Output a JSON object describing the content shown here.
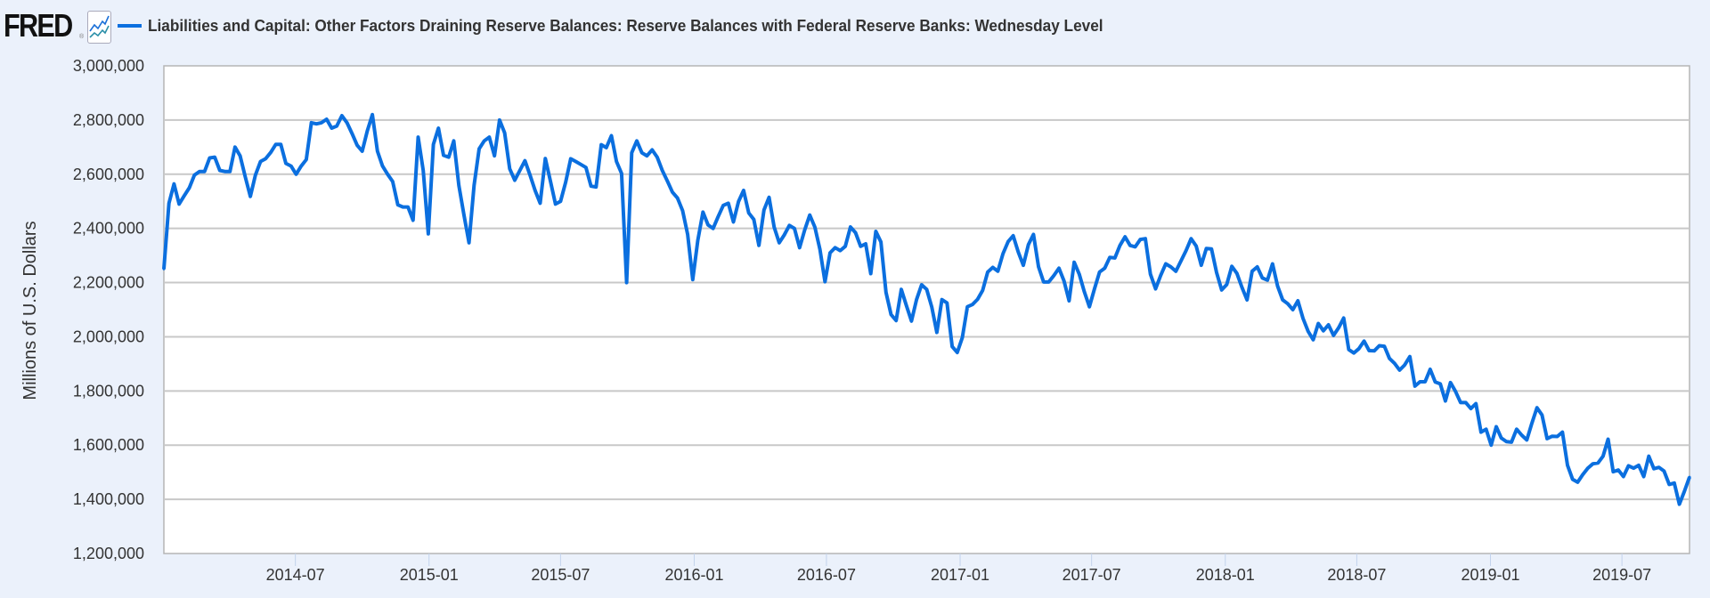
{
  "header": {
    "logo": "FRED",
    "logo_icon": "line-chart-icon",
    "legend_label": "Liabilities and Capital: Other Factors Draining Reserve Balances: Reserve Balances with Federal Reserve Banks: Wednesday Level"
  },
  "chart_data": {
    "type": "line",
    "title": "",
    "xlabel": "",
    "ylabel": "Millions of U.S. Dollars",
    "ylim": [
      1200000,
      3000000
    ],
    "xlim": [
      "2014-01-01",
      "2019-10-02"
    ],
    "grid": true,
    "legend_position": "top-left",
    "y_ticks": [
      "1,200,000",
      "1,400,000",
      "1,600,000",
      "1,800,000",
      "2,000,000",
      "2,200,000",
      "2,400,000",
      "2,600,000",
      "2,800,000",
      "3,000,000"
    ],
    "y_tick_values": [
      1200000,
      1400000,
      1600000,
      1800000,
      2000000,
      2200000,
      2400000,
      2600000,
      2800000,
      3000000
    ],
    "x_ticks": [
      "2014-07",
      "2015-01",
      "2015-07",
      "2016-01",
      "2016-07",
      "2017-01",
      "2017-07",
      "2018-01",
      "2018-07",
      "2019-01",
      "2019-07"
    ],
    "series": [
      {
        "name": "Liabilities and Capital: Other Factors Draining Reserve Balances: Reserve Balances with Federal Reserve Banks: Wednesday Level",
        "color": "#0b6fdf",
        "x_start": "2014-01-01",
        "frequency": "weekly (Wednesday)",
        "values": [
          2250000,
          2493000,
          2564000,
          2490000,
          2520000,
          2550000,
          2597000,
          2610000,
          2610000,
          2660000,
          2663000,
          2614000,
          2610000,
          2610000,
          2700000,
          2668000,
          2590000,
          2518000,
          2597000,
          2647000,
          2657000,
          2680000,
          2710000,
          2710000,
          2640000,
          2630000,
          2600000,
          2630000,
          2654000,
          2790000,
          2786000,
          2790000,
          2803000,
          2770000,
          2778000,
          2816000,
          2790000,
          2750000,
          2707000,
          2685000,
          2760000,
          2820000,
          2685000,
          2630000,
          2600000,
          2573000,
          2487000,
          2479000,
          2479000,
          2430000,
          2737000,
          2614000,
          2380000,
          2710000,
          2770000,
          2670000,
          2663000,
          2723000,
          2559000,
          2450000,
          2347000,
          2559000,
          2694000,
          2723000,
          2737000,
          2668000,
          2800000,
          2753000,
          2620000,
          2578000,
          2614000,
          2650000,
          2597000,
          2540000,
          2493000,
          2658000,
          2575000,
          2490000,
          2500000,
          2570000,
          2657000,
          2647000,
          2636000,
          2625000,
          2556000,
          2553000,
          2709000,
          2698000,
          2742000,
          2647000,
          2603000,
          2200000,
          2679000,
          2723000,
          2679000,
          2668000,
          2690000,
          2663000,
          2614000,
          2575000,
          2534000,
          2512000,
          2466000,
          2378000,
          2211000,
          2356000,
          2460000,
          2413000,
          2400000,
          2444000,
          2485000,
          2493000,
          2424000,
          2499000,
          2540000,
          2457000,
          2433000,
          2337000,
          2468000,
          2515000,
          2405000,
          2347000,
          2376000,
          2411000,
          2400000,
          2329000,
          2394000,
          2449000,
          2405000,
          2323000,
          2203000,
          2310000,
          2329000,
          2318000,
          2334000,
          2405000,
          2384000,
          2334000,
          2343000,
          2233000,
          2389000,
          2350000,
          2164000,
          2082000,
          2060000,
          2175000,
          2115000,
          2058000,
          2137000,
          2192000,
          2175000,
          2110000,
          2016000,
          2137000,
          2125000,
          1964000,
          1942000,
          1997000,
          2111000,
          2119000,
          2138000,
          2171000,
          2239000,
          2256000,
          2242000,
          2307000,
          2351000,
          2373000,
          2313000,
          2264000,
          2340000,
          2378000,
          2258000,
          2202000,
          2202000,
          2226000,
          2253000,
          2206000,
          2133000,
          2275000,
          2231000,
          2166000,
          2111000,
          2177000,
          2239000,
          2253000,
          2293000,
          2291000,
          2337000,
          2369000,
          2337000,
          2332000,
          2359000,
          2362000,
          2231000,
          2177000,
          2226000,
          2269000,
          2258000,
          2242000,
          2280000,
          2318000,
          2362000,
          2335000,
          2264000,
          2326000,
          2324000,
          2237000,
          2173000,
          2193000,
          2260000,
          2234000,
          2182000,
          2136000,
          2242000,
          2258000,
          2217000,
          2209000,
          2269000,
          2187000,
          2136000,
          2122000,
          2100000,
          2133000,
          2068000,
          2020000,
          1989000,
          2049000,
          2022000,
          2044000,
          2005000,
          2033000,
          2069000,
          1953000,
          1940000,
          1956000,
          1984000,
          1949000,
          1948000,
          1967000,
          1965000,
          1920000,
          1902000,
          1877000,
          1896000,
          1927000,
          1818000,
          1834000,
          1834000,
          1880000,
          1833000,
          1826000,
          1763000,
          1831000,
          1798000,
          1757000,
          1757000,
          1735000,
          1753000,
          1648000,
          1659000,
          1600000,
          1668000,
          1626000,
          1613000,
          1611000,
          1659000,
          1637000,
          1619000,
          1681000,
          1738000,
          1711000,
          1624000,
          1633000,
          1632000,
          1648000,
          1526000,
          1474000,
          1463000,
          1491000,
          1515000,
          1531000,
          1534000,
          1559000,
          1622000,
          1502000,
          1508000,
          1484000,
          1524000,
          1515000,
          1526000,
          1484000,
          1559000,
          1513000,
          1518000,
          1504000,
          1455000,
          1460000,
          1382000,
          1430000,
          1482000
        ]
      }
    ]
  }
}
